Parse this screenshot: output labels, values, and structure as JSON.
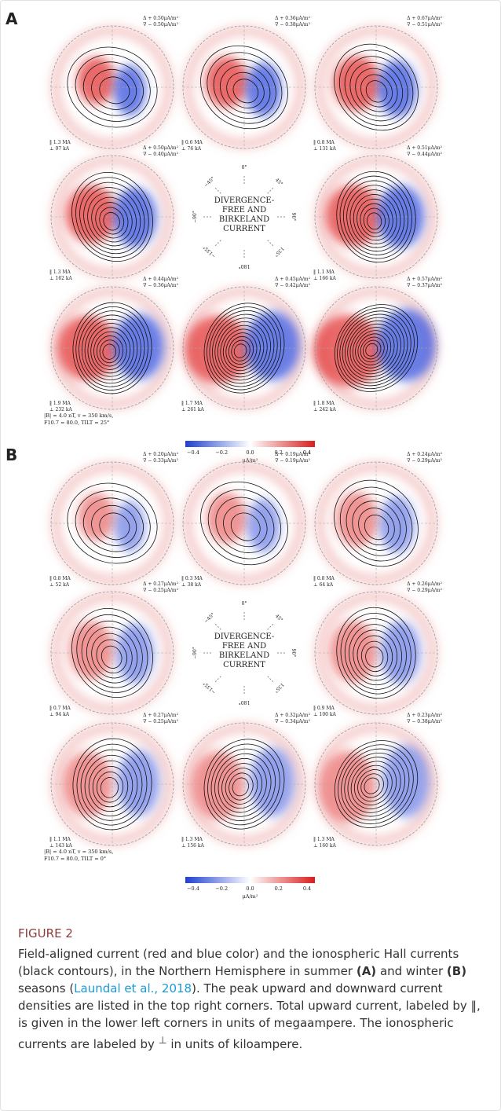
{
  "figure": {
    "panels": [
      {
        "label": "A",
        "center": [
          "DIVERGENCE-",
          "FREE AND",
          "BIRKELAND",
          "CURRENT"
        ],
        "angles": [
          "0°",
          "45°",
          "90°",
          "135°",
          "180°",
          "−135°",
          "−90°",
          "−45°"
        ],
        "params": [
          "|B| = 4.0 nT, v = 350 km/s,",
          "F10.7 = 80.0, TILT = 25°"
        ],
        "plots": [
          {
            "top": "Δ + 0.50μA/m²",
            "bottom": "∇ − 0.50μA/m²",
            "upward": "‖ 1.3 MA",
            "iono": "⊥ 97 kA"
          },
          {
            "top": "Δ + 0.36μA/m²",
            "bottom": "∇ − 0.38μA/m²",
            "upward": "‖ 0.6 MA",
            "iono": "⊥ 76 kA"
          },
          {
            "top": "Δ + 0.67μA/m²",
            "bottom": "∇ − 0.51μA/m²",
            "upward": "‖ 0.8 MA",
            "iono": "⊥ 131 kA"
          },
          {
            "top": "Δ + 0.50μA/m²",
            "bottom": "∇ − 0.40μA/m²",
            "upward": "‖ 1.3 MA",
            "iono": "⊥ 162 kA"
          },
          {
            "top": "Δ + 0.51μA/m²",
            "bottom": "∇ − 0.44μA/m²",
            "upward": "‖ 1.1 MA",
            "iono": "⊥ 166 kA"
          },
          {
            "top": "Δ + 0.44μA/m²",
            "bottom": "∇ − 0.36μA/m²",
            "upward": "‖ 1.9 MA",
            "iono": "⊥ 232 kA"
          },
          {
            "top": "Δ + 0.45μA/m²",
            "bottom": "∇ − 0.42μA/m²",
            "upward": "‖ 1.7 MA",
            "iono": "⊥ 261 kA"
          },
          {
            "top": "Δ + 0.57μA/m²",
            "bottom": "∇ − 0.37μA/m²",
            "upward": "‖ 1.8 MA",
            "iono": "⊥ 242 kA"
          }
        ],
        "colorbar": {
          "ticks": [
            "−0.4",
            "−0.2",
            "0.0",
            "0.2",
            "0.4"
          ],
          "unit": "μA/m²"
        }
      },
      {
        "label": "B",
        "center": [
          "DIVERGENCE-",
          "FREE AND",
          "BIRKELAND",
          "CURRENT"
        ],
        "angles": [
          "0°",
          "45°",
          "90°",
          "135°",
          "180°",
          "−135°",
          "−90°",
          "−45°"
        ],
        "params": [
          "|B| = 4.0 nT, v = 350 km/s,",
          "F10.7 = 80.0, TILT = 0°"
        ],
        "plots": [
          {
            "top": "Δ + 0.20μA/m²",
            "bottom": "∇ − 0.33μA/m²",
            "upward": "‖ 0.8 MA",
            "iono": "⊥ 52 kA"
          },
          {
            "top": "Δ + 0.19μA/m²",
            "bottom": "∇ − 0.19μA/m²",
            "upward": "‖ 0.3 MA",
            "iono": "⊥ 38 kA"
          },
          {
            "top": "Δ + 0.24μA/m²",
            "bottom": "∇ − 0.29μA/m²",
            "upward": "‖ 0.8 MA",
            "iono": "⊥ 64 kA"
          },
          {
            "top": "Δ + 0.27μA/m²",
            "bottom": "∇ − 0.25μA/m²",
            "upward": "‖ 0.7 MA",
            "iono": "⊥ 94 kA"
          },
          {
            "top": "Δ + 0.26μA/m²",
            "bottom": "∇ − 0.29μA/m²",
            "upward": "‖ 0.9 MA",
            "iono": "⊥ 100 kA"
          },
          {
            "top": "Δ + 0.27μA/m²",
            "bottom": "∇ − 0.25μA/m²",
            "upward": "‖ 1.1 MA",
            "iono": "⊥ 143 kA"
          },
          {
            "top": "Δ + 0.32μA/m²",
            "bottom": "∇ − 0.34μA/m²",
            "upward": "‖ 1.3 MA",
            "iono": "⊥ 156 kA"
          },
          {
            "top": "Δ + 0.23μA/m²",
            "bottom": "∇ − 0.38μA/m²",
            "upward": "‖ 1.3 MA",
            "iono": "⊥ 160 kA"
          }
        ],
        "colorbar": {
          "ticks": [
            "−0.4",
            "−0.2",
            "0.0",
            "0.2",
            "0.4"
          ],
          "unit": "μA/m²"
        }
      }
    ]
  },
  "caption": {
    "label": "FIGURE 2",
    "parts": [
      "Field-aligned current (red and blue color) and the ionospheric Hall currents (black contours), in the Northern Hemisphere in summer ",
      "(A)",
      " and winter ",
      "(B)",
      " seasons (",
      "Laundal et al., 2018",
      "). The peak upward and downward current densities are listed in the top right corners. Total upward current, labeled by ‖, is given in the lower left corners in units of megaampere. The ionospheric currents are labeled by ",
      "⊥",
      " in units of kiloampere."
    ]
  }
}
